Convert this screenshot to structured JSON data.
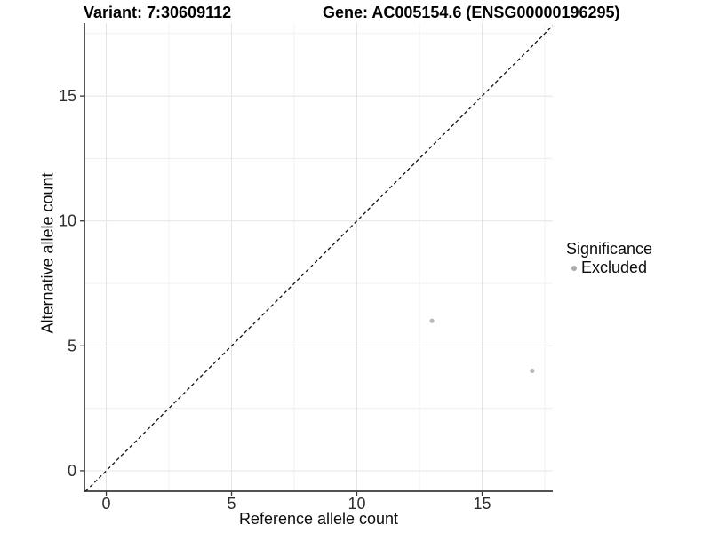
{
  "chart_data": {
    "type": "scatter",
    "titles": {
      "left": "Variant: 7:30609112",
      "right": "Gene: AC005154.6 (ENSG00000196295)"
    },
    "xlabel": "Reference allele count",
    "ylabel": "Alternative allele count",
    "xticks": [
      0,
      5,
      10,
      15
    ],
    "yticks": [
      0,
      5,
      10,
      15
    ],
    "xlim": [
      -0.87,
      17.82
    ],
    "ylim": [
      -0.82,
      17.92
    ],
    "grid": {
      "major": true,
      "minor": true
    },
    "identity_line": {
      "equation": "y = x",
      "style": "dashed",
      "color": "#111111"
    },
    "series": [
      {
        "name": "Excluded",
        "color": "#b9b9b9",
        "points": [
          {
            "x": 13,
            "y": 6
          },
          {
            "x": 17,
            "y": 4
          }
        ]
      }
    ],
    "legend": {
      "title": "Significance",
      "position": "right",
      "entries": [
        {
          "label": "Excluded",
          "color": "#ababab"
        }
      ]
    }
  }
}
